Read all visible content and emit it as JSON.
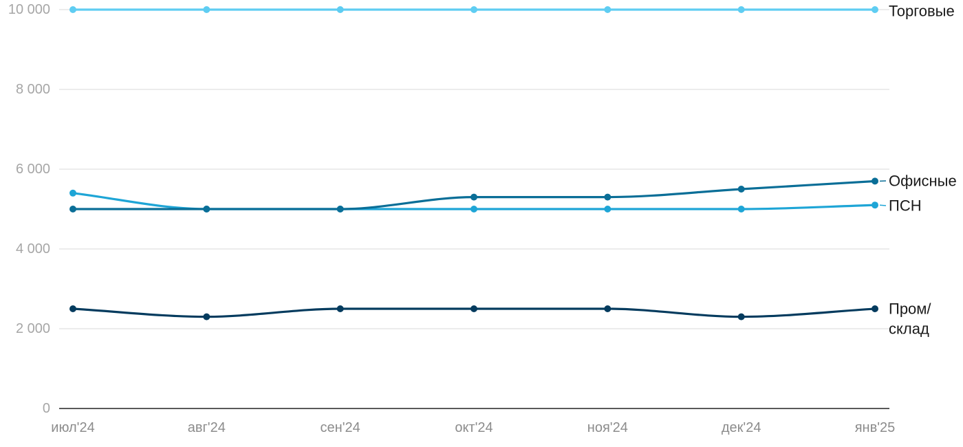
{
  "chart_data": {
    "type": "line",
    "title": "",
    "xlabel": "",
    "ylabel": "",
    "ylim": [
      0,
      10000
    ],
    "yticks": [
      0,
      2000,
      4000,
      6000,
      8000,
      10000
    ],
    "ytick_labels": [
      "0",
      "2 000",
      "4 000",
      "6 000",
      "8 000",
      "10 000"
    ],
    "grid": true,
    "categories": [
      "июл'24",
      "авг'24",
      "сен'24",
      "окт'24",
      "ноя'24",
      "дек'24",
      "янв'25"
    ],
    "series": [
      {
        "name": "Торговые",
        "color": "#5fcdf2",
        "values": [
          10000,
          10000,
          10000,
          10000,
          10000,
          10000,
          10000
        ]
      },
      {
        "name": "Офисные",
        "color": "#0a6e97",
        "values": [
          5000,
          5000,
          5000,
          5300,
          5300,
          5500,
          5700
        ]
      },
      {
        "name": "ПСН",
        "color": "#1ea5d6",
        "values": [
          5400,
          5000,
          5000,
          5000,
          5000,
          5000,
          5100
        ]
      },
      {
        "name": "Пром/ склад",
        "label_lines": [
          "Пром/",
          "склад"
        ],
        "color": "#043b5e",
        "values": [
          2500,
          2300,
          2500,
          2500,
          2500,
          2300,
          2500
        ]
      }
    ]
  }
}
